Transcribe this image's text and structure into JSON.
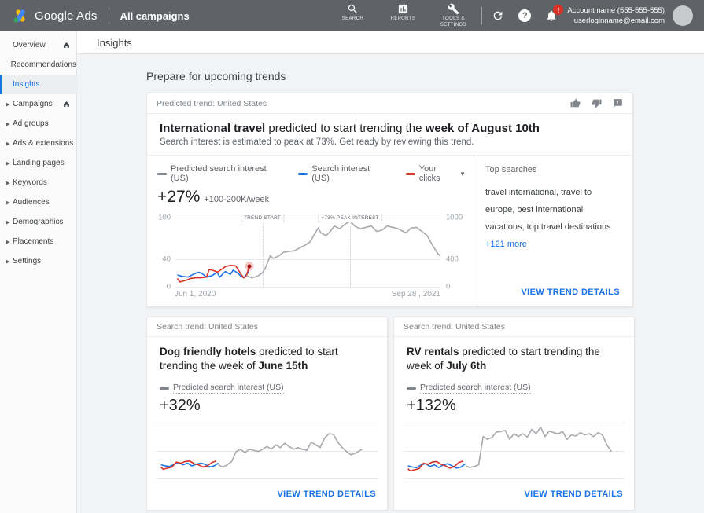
{
  "topbar": {
    "brand": "Google Ads",
    "context": "All campaigns",
    "nav_items": [
      {
        "label": "SEARCH"
      },
      {
        "label": "REPORTS"
      },
      {
        "label": "TOOLS & SETTINGS"
      }
    ],
    "notification_badge": "!",
    "account_name": "Account name (555-555-555)",
    "account_email": "userloginname@email.com"
  },
  "sidebar": {
    "items": [
      {
        "label": "Overview"
      },
      {
        "label": "Recommendations"
      },
      {
        "label": "Insights"
      },
      {
        "label": "Campaigns"
      },
      {
        "label": "Ad groups"
      },
      {
        "label": "Ads & extensions"
      },
      {
        "label": "Landing pages"
      },
      {
        "label": "Keywords"
      },
      {
        "label": "Audiences"
      },
      {
        "label": "Demographics"
      },
      {
        "label": "Placements"
      },
      {
        "label": "Settings"
      }
    ]
  },
  "page": {
    "title": "Insights",
    "section_heading": "Prepare for upcoming trends"
  },
  "main_card": {
    "eyebrow": "Predicted trend: United States",
    "title_lead": "International travel",
    "title_mid": " predicted to start trending the ",
    "title_tail": "week of August 10th",
    "subtitle": "Search interest is estimated to peak at 73%. Get ready by reviewing this trend.",
    "legend": [
      {
        "label": "Predicted search interest (US)",
        "color": "#80868b"
      },
      {
        "label": "Search interest (US)",
        "color": "#1a73e8"
      },
      {
        "label": "Your clicks",
        "color": "#d93025"
      }
    ],
    "delta": "+27%",
    "delta_detail": "+100-200K/week",
    "x_start": "Jun 1, 2020",
    "x_end": "Sep 28 , 2021",
    "top_searches_heading": "Top searches",
    "top_searches_text": "travel international, travel to europe, best international vacations, top travel destinations ",
    "top_searches_more": "+121 more",
    "cta": "VIEW TREND DETAILS"
  },
  "mini_cards": [
    {
      "eyebrow": "Search trend: United States",
      "title_lead": "Dog friendly hotels",
      "title_mid": " predicted to start trending the week of ",
      "title_tail": "June 15th",
      "legend_label": "Predicted search interest (US)",
      "legend_color": "#80868b",
      "delta": "+32%",
      "cta": "VIEW TREND DETAILS"
    },
    {
      "eyebrow": "Search trend: United States",
      "title_lead": "RV rentals",
      "title_mid": " predicted to start trending the week of ",
      "title_tail": "July 6th",
      "legend_label": "Predicted search interest (US)",
      "legend_color": "#80868b",
      "delta": "+132%",
      "cta": "VIEW TREND DETAILS"
    }
  ],
  "chart_data": [
    {
      "type": "line",
      "name": "International travel search interest",
      "x_range": [
        "Jun 1, 2020",
        "Sep 28 , 2021"
      ],
      "ylim": [
        0,
        100
      ],
      "gridlines": [
        0,
        40,
        100
      ],
      "ticks_left": [
        {
          "label": "100",
          "value": 100
        },
        {
          "label": "40",
          "value": 40
        },
        {
          "label": "0",
          "value": 0
        }
      ],
      "ticks_right": [
        {
          "label": "1000",
          "value": 100
        },
        {
          "label": "400",
          "value": 40
        },
        {
          "label": "0",
          "value": 0
        }
      ],
      "annotations": [
        {
          "label": "TREND START",
          "x": 33
        },
        {
          "label": "+73% PEAK INTEREST",
          "x": 66
        }
      ],
      "series": [
        {
          "name": "Search interest (US)",
          "color": "#1a73e8",
          "points": [
            [
              1,
              17
            ],
            [
              3,
              15
            ],
            [
              5,
              14
            ],
            [
              7,
              18
            ],
            [
              9,
              21
            ],
            [
              10,
              20
            ],
            [
              12,
              14
            ],
            [
              14,
              16
            ],
            [
              16,
              21
            ],
            [
              17,
              14
            ],
            [
              19,
              22
            ],
            [
              21,
              18
            ],
            [
              22,
              24
            ],
            [
              24,
              19
            ],
            [
              25,
              15
            ],
            [
              26,
              13
            ],
            [
              28,
              22
            ]
          ]
        },
        {
          "name": "Your clicks",
          "color": "#d93025",
          "end_marker": true,
          "points": [
            [
              1,
              12
            ],
            [
              2,
              7
            ],
            [
              4,
              9
            ],
            [
              6,
              12
            ],
            [
              8,
              13
            ],
            [
              10,
              13
            ],
            [
              12,
              14
            ],
            [
              13,
              25
            ],
            [
              15,
              23
            ],
            [
              16,
              21
            ],
            [
              18,
              26
            ],
            [
              19,
              29
            ],
            [
              21,
              31
            ],
            [
              23,
              30
            ],
            [
              24,
              24
            ],
            [
              25,
              18
            ],
            [
              26,
              13
            ],
            [
              27,
              16
            ],
            [
              28,
              29
            ]
          ]
        },
        {
          "name": "Predicted search interest (US)",
          "color": "#a6aaae",
          "points": [
            [
              27,
              16
            ],
            [
              29,
              13
            ],
            [
              31,
              15
            ],
            [
              33,
              20
            ],
            [
              34,
              26
            ],
            [
              36,
              45
            ],
            [
              37,
              41
            ],
            [
              39,
              44
            ],
            [
              41,
              50
            ],
            [
              43,
              51
            ],
            [
              45,
              52
            ],
            [
              47,
              56
            ],
            [
              49,
              60
            ],
            [
              51,
              65
            ],
            [
              52,
              72
            ],
            [
              54,
              85
            ],
            [
              55,
              78
            ],
            [
              57,
              74
            ],
            [
              59,
              82
            ],
            [
              60,
              88
            ],
            [
              62,
              84
            ],
            [
              64,
              90
            ],
            [
              66,
              95
            ],
            [
              68,
              87
            ],
            [
              70,
              84
            ],
            [
              72,
              86
            ],
            [
              74,
              88
            ],
            [
              76,
              80
            ],
            [
              78,
              82
            ],
            [
              80,
              88
            ],
            [
              82,
              86
            ],
            [
              84,
              84
            ],
            [
              85,
              82
            ],
            [
              87,
              78
            ],
            [
              89,
              85
            ],
            [
              91,
              86
            ],
            [
              93,
              80
            ],
            [
              95,
              74
            ],
            [
              97,
              60
            ],
            [
              99,
              48
            ],
            [
              100,
              44
            ]
          ]
        }
      ]
    },
    {
      "type": "line",
      "name": "Dog friendly hotels search interest",
      "ylim": [
        0,
        100
      ],
      "gridlines": [
        0,
        50,
        100
      ],
      "series": [
        {
          "name": "Search interest (US)",
          "color": "#1a73e8",
          "points": [
            [
              2,
              24
            ],
            [
              4,
              22
            ],
            [
              6,
              21
            ],
            [
              8,
              25
            ],
            [
              10,
              28
            ],
            [
              12,
              24
            ],
            [
              14,
              27
            ],
            [
              16,
              22
            ],
            [
              18,
              25
            ],
            [
              20,
              27
            ],
            [
              22,
              25
            ],
            [
              24,
              20
            ],
            [
              26,
              22
            ],
            [
              28,
              27
            ]
          ]
        },
        {
          "name": "Your clicks",
          "color": "#d93025",
          "points": [
            [
              2,
              20
            ],
            [
              3,
              16
            ],
            [
              5,
              18
            ],
            [
              7,
              20
            ],
            [
              9,
              29
            ],
            [
              11,
              27
            ],
            [
              13,
              30
            ],
            [
              15,
              31
            ],
            [
              17,
              26
            ],
            [
              19,
              24
            ],
            [
              21,
              20
            ],
            [
              23,
              22
            ],
            [
              25,
              28
            ],
            [
              27,
              31
            ]
          ]
        },
        {
          "name": "Predicted search interest (US)",
          "color": "#a6aaae",
          "points": [
            [
              28,
              24
            ],
            [
              30,
              20
            ],
            [
              32,
              24
            ],
            [
              34,
              30
            ],
            [
              36,
              48
            ],
            [
              38,
              52
            ],
            [
              40,
              46
            ],
            [
              42,
              52
            ],
            [
              44,
              50
            ],
            [
              46,
              48
            ],
            [
              48,
              52
            ],
            [
              50,
              57
            ],
            [
              52,
              52
            ],
            [
              54,
              60
            ],
            [
              56,
              55
            ],
            [
              58,
              63
            ],
            [
              60,
              57
            ],
            [
              62,
              52
            ],
            [
              64,
              55
            ],
            [
              66,
              52
            ],
            [
              68,
              50
            ],
            [
              70,
              65
            ],
            [
              72,
              60
            ],
            [
              74,
              55
            ],
            [
              76,
              72
            ],
            [
              78,
              80
            ],
            [
              80,
              79
            ],
            [
              82,
              65
            ],
            [
              84,
              55
            ],
            [
              86,
              48
            ],
            [
              88,
              42
            ],
            [
              90,
              45
            ],
            [
              93,
              52
            ]
          ]
        }
      ]
    },
    {
      "type": "line",
      "name": "RV rentals search interest",
      "ylim": [
        0,
        100
      ],
      "gridlines": [
        0,
        50,
        100
      ],
      "series": [
        {
          "name": "Search interest (US)",
          "color": "#1a73e8",
          "points": [
            [
              2,
              22
            ],
            [
              4,
              20
            ],
            [
              6,
              19
            ],
            [
              8,
              24
            ],
            [
              10,
              26
            ],
            [
              12,
              21
            ],
            [
              14,
              24
            ],
            [
              16,
              19
            ],
            [
              18,
              24
            ],
            [
              20,
              26
            ],
            [
              22,
              22
            ],
            [
              24,
              18
            ],
            [
              26,
              20
            ],
            [
              28,
              26
            ]
          ]
        },
        {
          "name": "Your clicks",
          "color": "#d93025",
          "points": [
            [
              2,
              17
            ],
            [
              3,
              13
            ],
            [
              5,
              15
            ],
            [
              7,
              17
            ],
            [
              9,
              27
            ],
            [
              11,
              25
            ],
            [
              13,
              29
            ],
            [
              15,
              30
            ],
            [
              17,
              25
            ],
            [
              19,
              22
            ],
            [
              21,
              18
            ],
            [
              23,
              21
            ],
            [
              25,
              28
            ],
            [
              27,
              31
            ]
          ]
        },
        {
          "name": "Predicted search interest (US)",
          "color": "#a6aaae",
          "points": [
            [
              28,
              22
            ],
            [
              30,
              19
            ],
            [
              32,
              21
            ],
            [
              34,
              24
            ],
            [
              36,
              75
            ],
            [
              38,
              70
            ],
            [
              40,
              73
            ],
            [
              42,
              83
            ],
            [
              44,
              84
            ],
            [
              46,
              86
            ],
            [
              48,
              70
            ],
            [
              50,
              80
            ],
            [
              52,
              75
            ],
            [
              54,
              80
            ],
            [
              56,
              74
            ],
            [
              58,
              88
            ],
            [
              60,
              80
            ],
            [
              62,
              92
            ],
            [
              64,
              75
            ],
            [
              66,
              85
            ],
            [
              68,
              82
            ],
            [
              70,
              80
            ],
            [
              72,
              84
            ],
            [
              74,
              70
            ],
            [
              76,
              78
            ],
            [
              78,
              76
            ],
            [
              80,
              82
            ],
            [
              82,
              78
            ],
            [
              84,
              80
            ],
            [
              86,
              75
            ],
            [
              88,
              82
            ],
            [
              90,
              78
            ],
            [
              92,
              60
            ],
            [
              94,
              48
            ]
          ]
        }
      ]
    }
  ]
}
